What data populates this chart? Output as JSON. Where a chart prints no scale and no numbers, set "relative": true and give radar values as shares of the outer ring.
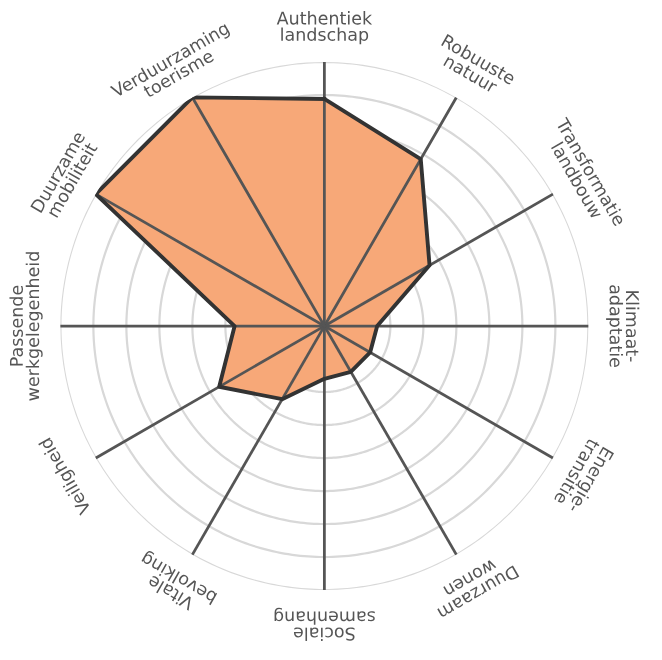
{
  "chart_data": {
    "type": "radar",
    "relative": true,
    "grid": true,
    "categories": [
      "Authentiek\nlandschap",
      "Robuuste\nnatuur",
      "Transformatie\nlandbouw",
      "Klimaat-\nadaptatie",
      "Energie-\ntransitie",
      "Duurzaam\nwonen",
      "Sociale\nsamenhang",
      "Vitale\nbevolking",
      "Veiligheid",
      "Passende\nwerkgelegenheid",
      "Duurzame\nmobiliteit",
      "Verduurzaming\ntoerisme"
    ],
    "series": [
      {
        "color": "#f7a878",
        "values": [
          0.86,
          0.73,
          0.46,
          0.2,
          0.2,
          0.2,
          0.2,
          0.32,
          0.46,
          0.34,
          1.0,
          1.0
        ]
      }
    ]
  }
}
